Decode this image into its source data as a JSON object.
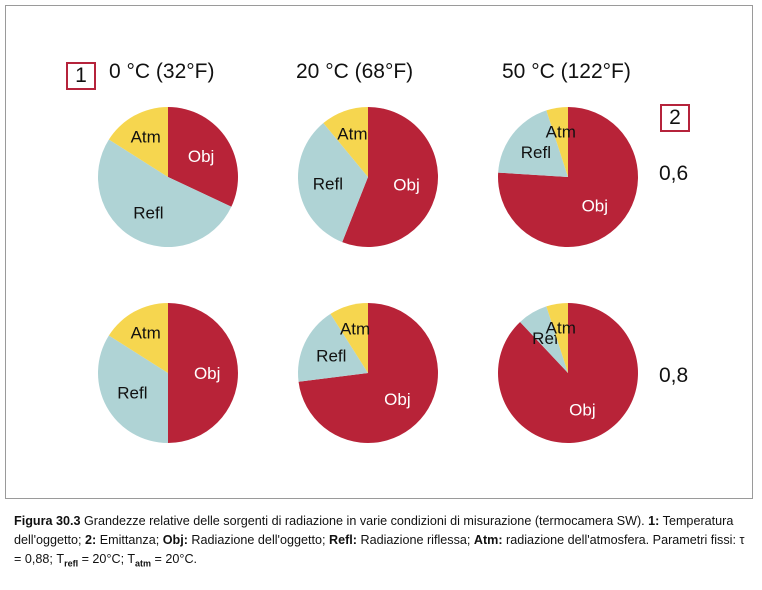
{
  "chart_data": {
    "type": "pie",
    "columns": [
      "0 °C (32°F)",
      "20 °C (68°F)",
      "50 °C (122°F)"
    ],
    "rows": [
      "0,6",
      "0,8"
    ],
    "column_badge": "1",
    "row_badge": "2",
    "colors": {
      "Obj": "#b82338",
      "Refl": "#afd3d5",
      "Atm": "#f6d64f"
    },
    "pies": [
      {
        "row": 0,
        "col": 0,
        "slices": [
          {
            "label": "Obj",
            "value": 32
          },
          {
            "label": "Refl",
            "value": 52
          },
          {
            "label": "Atm",
            "value": 16
          }
        ]
      },
      {
        "row": 0,
        "col": 1,
        "slices": [
          {
            "label": "Obj",
            "value": 56
          },
          {
            "label": "Refl",
            "value": 33
          },
          {
            "label": "Atm",
            "value": 11
          }
        ]
      },
      {
        "row": 0,
        "col": 2,
        "slices": [
          {
            "label": "Obj",
            "value": 76
          },
          {
            "label": "Refl",
            "value": 19
          },
          {
            "label": "Atm",
            "value": 5
          }
        ]
      },
      {
        "row": 1,
        "col": 0,
        "slices": [
          {
            "label": "Obj",
            "value": 50
          },
          {
            "label": "Refl",
            "value": 34
          },
          {
            "label": "Atm",
            "value": 16
          }
        ]
      },
      {
        "row": 1,
        "col": 1,
        "slices": [
          {
            "label": "Obj",
            "value": 73
          },
          {
            "label": "Refl",
            "value": 18
          },
          {
            "label": "Atm",
            "value": 9
          }
        ]
      },
      {
        "row": 1,
        "col": 2,
        "slices": [
          {
            "label": "Obj",
            "value": 88
          },
          {
            "label": "Refl",
            "value": 7
          },
          {
            "label": "Atm",
            "value": 5
          }
        ]
      }
    ]
  },
  "caption": {
    "figure": "Figura 30.3",
    "text": " Grandezze relative delle sorgenti di radiazione in varie condizioni di misurazione (termocamera SW). ",
    "k1": "1:",
    "v1": " Temperatura dell'oggetto; ",
    "k2": "2:",
    "v2": " Emittanza; ",
    "k3": "Obj:",
    "v3": " Radiazione dell'oggetto; ",
    "k4": "Refl:",
    "v4": " Radiazione riflessa; ",
    "k5": "Atm:",
    "v5": " radiazione dell'atmosfera. Parametri fissi: τ = 0,88; T",
    "sub1": "refl",
    "v6": " = 20°C; T",
    "sub2": "atm",
    "v7": " = 20°C."
  }
}
